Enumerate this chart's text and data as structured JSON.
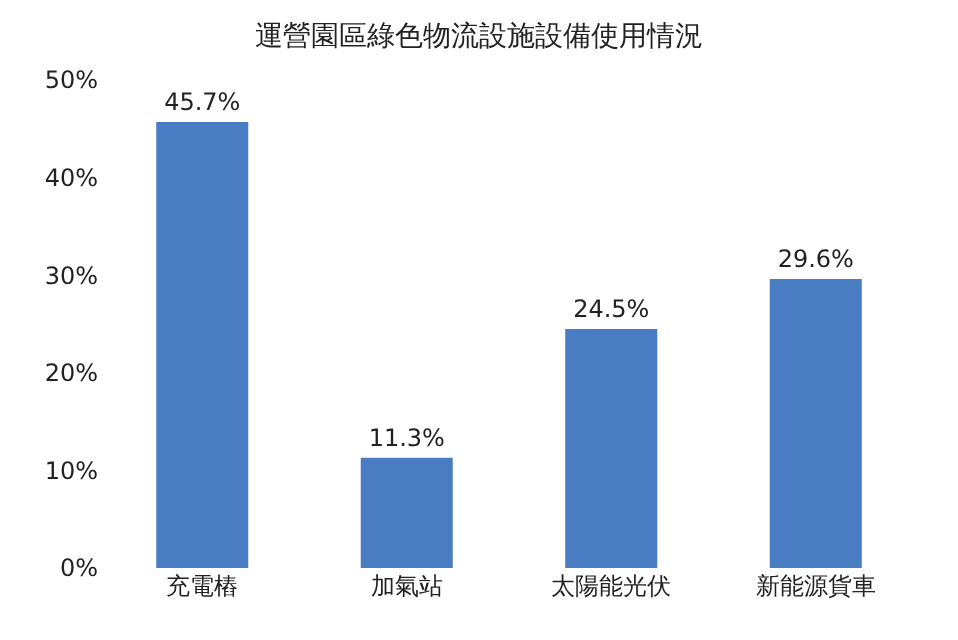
{
  "chart_data": {
    "type": "bar",
    "title": "運營園區綠色物流設施設備使用情況",
    "categories": [
      "充電樁",
      "加氣站",
      "太陽能光伏",
      "新能源貨車"
    ],
    "values": [
      45.7,
      11.3,
      24.5,
      29.6
    ],
    "value_labels": [
      "45.7%",
      "11.3%",
      "24.5%",
      "29.6%"
    ],
    "color": "#4a7cc4",
    "ylim": [
      0,
      50
    ],
    "yticks": [
      {
        "value": 0,
        "label": "0%"
      },
      {
        "value": 10,
        "label": "10%"
      },
      {
        "value": 20,
        "label": "20%"
      },
      {
        "value": 30,
        "label": "30%"
      },
      {
        "value": 40,
        "label": "40%"
      },
      {
        "value": 50,
        "label": "50%"
      }
    ],
    "grid": false,
    "legend": false
  }
}
